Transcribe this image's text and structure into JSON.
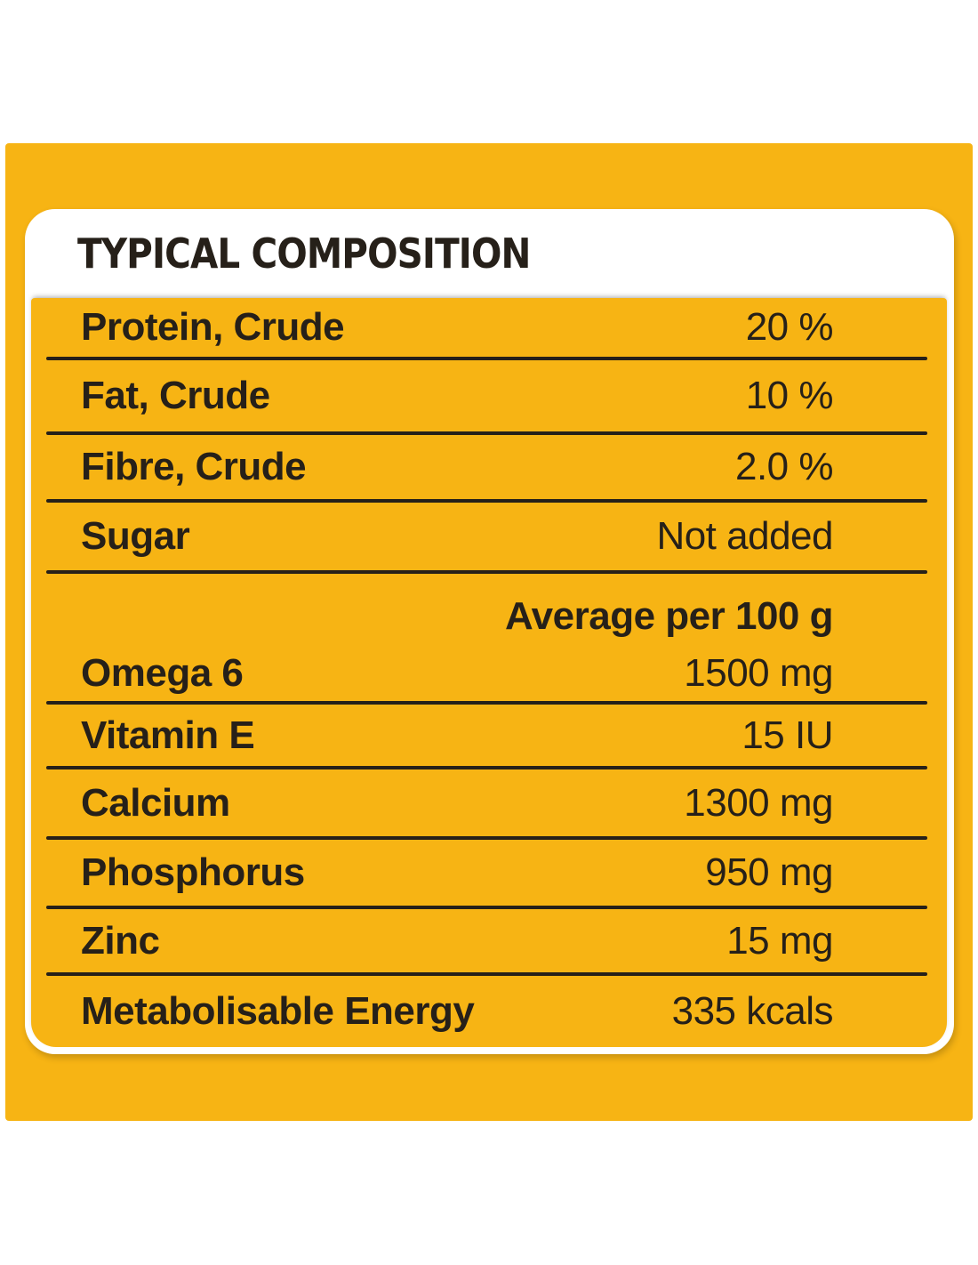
{
  "colors": {
    "brand_yellow": "#F7B414",
    "text": "#262019",
    "card_background": "#FFFFFF"
  },
  "title": "TYPICAL COMPOSITION",
  "table": {
    "composition_rows": [
      {
        "label": "Protein, Crude",
        "value": "20 %"
      },
      {
        "label": "Fat, Crude",
        "value": "10 %"
      },
      {
        "label": "Fibre, Crude",
        "value": "2.0 %"
      },
      {
        "label": "Sugar",
        "value": "Not added"
      }
    ],
    "average_section": {
      "header": "Average per 100 g",
      "row": {
        "label": "Omega 6",
        "value": "1500 mg"
      }
    },
    "per_100g_rows": [
      {
        "label": "Vitamin E",
        "value": "15 IU"
      },
      {
        "label": "Calcium",
        "value": "1300 mg"
      },
      {
        "label": "Phosphorus",
        "value": "950 mg"
      },
      {
        "label": "Zinc",
        "value": "15 mg"
      },
      {
        "label": "Metabolisable Energy",
        "value": "335 kcals"
      }
    ]
  }
}
